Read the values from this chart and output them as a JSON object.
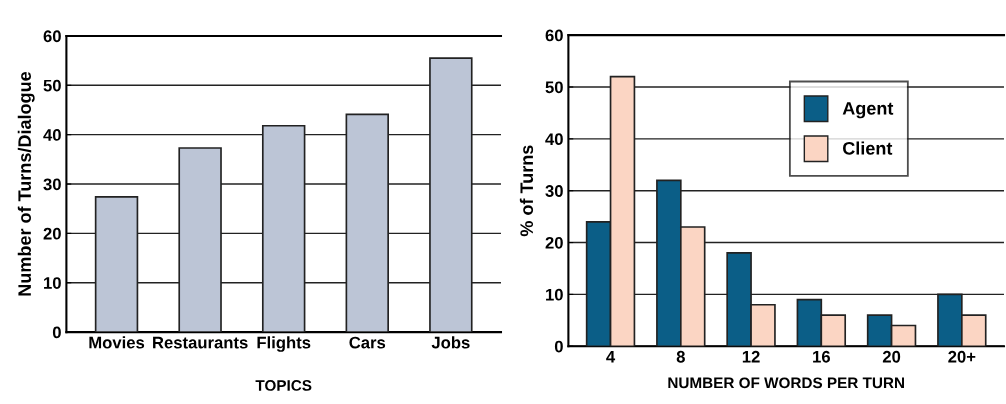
{
  "chart_data": [
    {
      "type": "bar",
      "xlabel": "TOPICS",
      "ylabel": "Number of Turns/Dialogue",
      "categories": [
        "Movies",
        "Restaurants",
        "Flights",
        "Cars",
        "Jobs"
      ],
      "values": [
        27.4,
        37.3,
        41.8,
        44.1,
        55.5
      ],
      "color": "#bcc5d6",
      "ylim": [
        0,
        60
      ],
      "yticks": [
        0,
        10,
        20,
        30,
        40,
        50,
        60
      ],
      "grid": "y"
    },
    {
      "type": "bar",
      "xlabel": "NUMBER OF WORDS PER TURN",
      "ylabel": "% of Turns",
      "categories": [
        "4",
        "8",
        "12",
        "16",
        "20",
        "20+"
      ],
      "series": [
        {
          "name": "Agent",
          "color": "#0b5e87",
          "values": [
            24,
            32,
            18,
            9,
            6,
            10
          ]
        },
        {
          "name": "Client",
          "color": "#fbd5c3",
          "values": [
            52,
            23,
            8,
            6,
            4,
            6
          ]
        }
      ],
      "ylim": [
        0,
        60
      ],
      "yticks": [
        0,
        10,
        20,
        30,
        40,
        50,
        60
      ],
      "grid": "y",
      "legend": "top right"
    }
  ]
}
